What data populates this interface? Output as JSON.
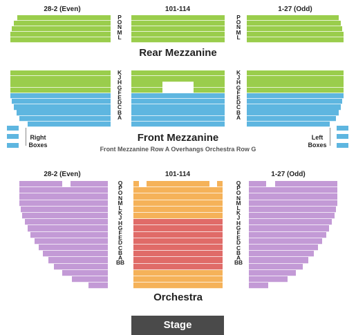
{
  "colors": {
    "rear_mezzanine": "#9acd4c",
    "front_mezz_upper": "#9acd4c",
    "front_mezz_lower": "#5eb6e0",
    "orchestra_sides": "#c39ad6",
    "orchestra_center_upper": "#f5b259",
    "orchestra_center_mid": "#e06b68",
    "stage": "#4a4a4a"
  },
  "sections": {
    "rear_mezzanine": {
      "title": "Rear Mezzanine",
      "left_label": "28-2 (Even)",
      "center_label": "101-114",
      "right_label": "1-27 (Odd)",
      "rows": [
        "P",
        "O",
        "N",
        "M",
        "L"
      ]
    },
    "front_mezzanine": {
      "title": "Front Mezzanine",
      "note": "Front Mezzanine Row A Overhangs Orchestra Row G",
      "rows": [
        "K",
        "J",
        "H",
        "G",
        "F",
        "E",
        "D",
        "C",
        "B",
        "A"
      ],
      "right_boxes_label_1": "Right",
      "right_boxes_label_2": "Boxes",
      "left_boxes_label_1": "Left",
      "left_boxes_label_2": "Boxes"
    },
    "orchestra": {
      "title": "Orchestra",
      "left_label": "28-2 (Even)",
      "center_label": "101-114",
      "right_label": "1-27 (Odd)",
      "rows": [
        "Q",
        "P",
        "O",
        "N",
        "M",
        "L",
        "K",
        "J",
        "H",
        "G",
        "F",
        "E",
        "D",
        "C",
        "B",
        "A",
        "BB"
      ]
    }
  },
  "stage_label": "Stage"
}
